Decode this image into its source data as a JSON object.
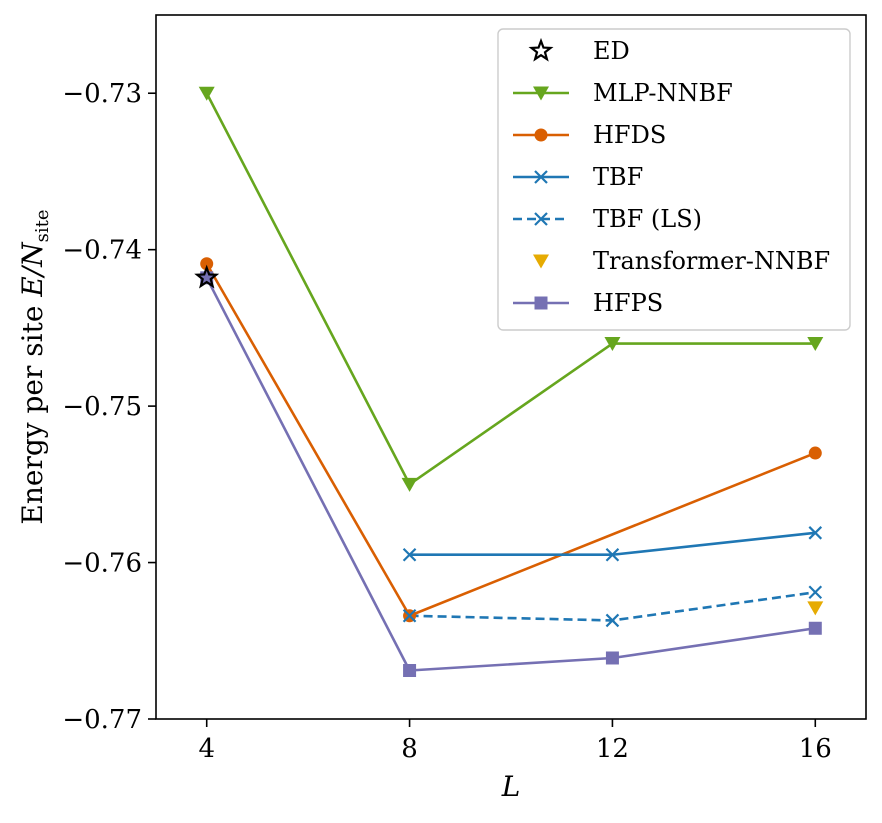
{
  "chart_data": {
    "type": "line",
    "xlabel": "L",
    "ylabel_prefix": "Energy per site ",
    "ylabel_var": "E/N",
    "ylabel_sub": "site",
    "xticks": [
      4,
      8,
      12,
      16
    ],
    "xtick_labels": [
      "4",
      "8",
      "12",
      "16"
    ],
    "yticks": [
      -0.73,
      -0.74,
      -0.75,
      -0.76,
      -0.77
    ],
    "ytick_labels": [
      "−0.73",
      "−0.74",
      "−0.75",
      "−0.76",
      "−0.77"
    ],
    "xlim": [
      3,
      17
    ],
    "ylim": [
      -0.77,
      -0.725
    ],
    "grid": false,
    "legend_position": "top-right",
    "series": [
      {
        "name": "ED",
        "color": "#000000",
        "marker": "star",
        "line": "none",
        "x": [
          4
        ],
        "y": [
          -0.7418
        ]
      },
      {
        "name": "MLP-NNBF",
        "color": "#66a61e",
        "marker": "triangle-down",
        "line": "solid",
        "x": [
          4,
          8,
          12,
          16
        ],
        "y": [
          -0.73,
          -0.755,
          -0.746,
          -0.746
        ]
      },
      {
        "name": "HFDS",
        "color": "#d95f02",
        "marker": "circle",
        "line": "solid",
        "x": [
          4,
          8,
          16
        ],
        "y": [
          -0.7409,
          -0.7634,
          -0.753
        ]
      },
      {
        "name": "TBF",
        "color": "#1f77b4",
        "marker": "x",
        "line": "solid",
        "x": [
          8,
          12,
          16
        ],
        "y": [
          -0.7595,
          -0.7595,
          -0.7581
        ]
      },
      {
        "name": "TBF (LS)",
        "color": "#1f77b4",
        "marker": "x",
        "line": "dashed",
        "x": [
          8,
          12,
          16
        ],
        "y": [
          -0.7634,
          -0.7637,
          -0.7619
        ]
      },
      {
        "name": "Transformer-NNBF",
        "color": "#e6ab02",
        "marker": "triangle-down",
        "line": "none",
        "x": [
          16
        ],
        "y": [
          -0.7629
        ]
      },
      {
        "name": "HFPS",
        "color": "#7570b3",
        "marker": "square",
        "line": "solid",
        "x": [
          4,
          8,
          12,
          16
        ],
        "y": [
          -0.7418,
          -0.7669,
          -0.7661,
          -0.7642
        ]
      }
    ]
  }
}
